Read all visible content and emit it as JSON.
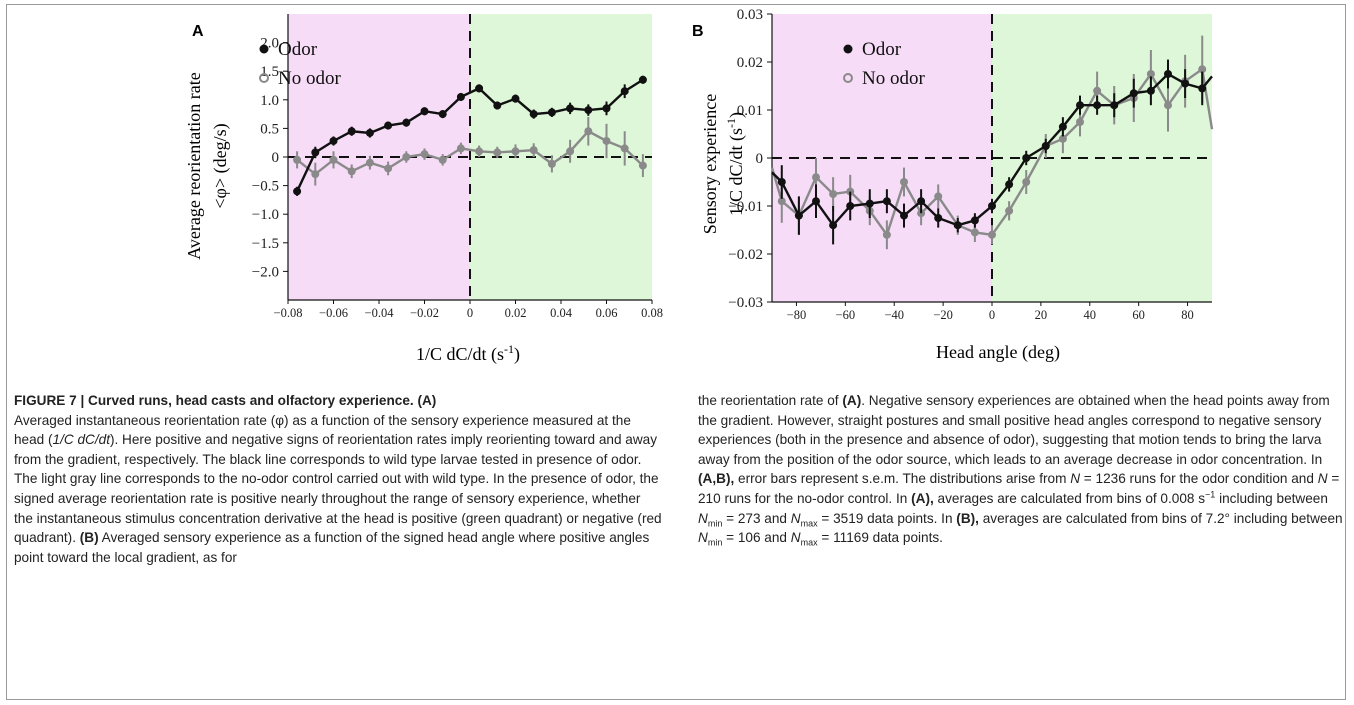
{
  "figure": {
    "panels": {
      "A": {
        "label": "A",
        "ylabel_line1": "Average reorientation rate",
        "ylabel_line2": "<φ>  (deg/s)",
        "xlabel": "1/C dC/dt (s",
        "xlabel_sup": "-1",
        "xlabel_tail": ")",
        "legend": [
          "Odor",
          "No odor"
        ],
        "colors": {
          "odor": "#111111",
          "no_odor": "#8a8a8a",
          "neg_region": "#f7dcf8",
          "pos_region": "#def7d8"
        }
      },
      "B": {
        "label": "B",
        "ylabel_line1": "Sensory experience",
        "ylabel_line2": "1/C dC/dt (s",
        "ylabel_sup": "-1",
        "ylabel_tail": ")",
        "xlabel": "Head angle (deg)",
        "legend": [
          "Odor",
          "No odor"
        ],
        "colors": {
          "odor": "#111111",
          "no_odor": "#8a8a8a",
          "neg_region": "#f7dcf8",
          "pos_region": "#def7d8"
        }
      }
    }
  },
  "chart_data": [
    {
      "type": "line",
      "panel": "A",
      "xlabel": "1/C dC/dt (s-1)",
      "ylabel": "Average reorientation rate <φ> (deg/s)",
      "xlim": [
        -0.08,
        0.08
      ],
      "ylim": [
        -2.5,
        2.5
      ],
      "xticks": [
        "−0.08",
        "−0.06",
        "−0.04",
        "−0.02",
        "0",
        "0.02",
        "0.04",
        "0.06",
        "0.08"
      ],
      "yticks": [
        "2.0",
        "1.5",
        "1.0",
        "0.5",
        "0",
        "−0.5",
        "−1.0",
        "−1.5",
        "−2.0"
      ],
      "legend_position": "top-left",
      "x": [
        -0.076,
        -0.068,
        -0.06,
        -0.052,
        -0.044,
        -0.036,
        -0.028,
        -0.02,
        -0.012,
        -0.004,
        0.004,
        0.012,
        0.02,
        0.028,
        0.036,
        0.044,
        0.052,
        0.06,
        0.068,
        0.076
      ],
      "series": [
        {
          "name": "Odor",
          "color": "#111111",
          "values": [
            -0.6,
            0.08,
            0.28,
            0.45,
            0.42,
            0.55,
            0.6,
            0.8,
            0.75,
            1.05,
            1.2,
            0.9,
            1.02,
            0.75,
            0.78,
            0.85,
            0.82,
            0.85,
            1.15,
            1.35
          ],
          "errors": [
            0.08,
            0.1,
            0.08,
            0.08,
            0.08,
            0.07,
            0.07,
            0.07,
            0.07,
            0.07,
            0.07,
            0.07,
            0.07,
            0.08,
            0.08,
            0.1,
            0.1,
            0.12,
            0.12,
            0.07
          ]
        },
        {
          "name": "No odor",
          "color": "#8a8a8a",
          "values": [
            -0.05,
            -0.3,
            -0.05,
            -0.25,
            -0.1,
            -0.2,
            0.0,
            0.05,
            -0.05,
            0.15,
            0.1,
            0.08,
            0.1,
            0.12,
            -0.12,
            0.1,
            0.45,
            0.28,
            0.15,
            -0.15
          ],
          "errors": [
            0.15,
            0.2,
            0.15,
            0.12,
            0.12,
            0.12,
            0.1,
            0.1,
            0.1,
            0.1,
            0.1,
            0.1,
            0.12,
            0.12,
            0.15,
            0.2,
            0.25,
            0.3,
            0.3,
            0.2
          ]
        }
      ]
    },
    {
      "type": "line",
      "panel": "B",
      "xlabel": "Head angle (deg)",
      "ylabel": "Sensory experience 1/C dC/dt (s-1)",
      "xlim": [
        -90,
        90
      ],
      "ylim": [
        -0.03,
        0.03
      ],
      "xticks": [
        "−80",
        "−60",
        "−40",
        "−20",
        "0",
        "20",
        "40",
        "60",
        "80"
      ],
      "yticks": [
        "0.03",
        "0.02",
        "0.01",
        "0",
        "−0.01",
        "−0.02",
        "−0.03"
      ],
      "legend_position": "top-left",
      "series": [
        {
          "name": "Odor",
          "color": "#111111",
          "x": [
            -90,
            -86,
            -79,
            -72,
            -65,
            -58,
            -50,
            -43,
            -36,
            -29,
            -22,
            -14,
            -7,
            0,
            7,
            14,
            22,
            29,
            36,
            43,
            50,
            58,
            65,
            72,
            79,
            86,
            90
          ],
          "values": [
            -0.003,
            -0.005,
            -0.012,
            -0.009,
            -0.014,
            -0.01,
            -0.0095,
            -0.009,
            -0.012,
            -0.009,
            -0.0125,
            -0.014,
            -0.013,
            -0.01,
            -0.0055,
            0.0,
            0.0025,
            0.0065,
            0.011,
            0.011,
            0.011,
            0.0135,
            0.014,
            0.0175,
            0.0155,
            0.0145,
            0.017
          ],
          "errors": [
            0,
            0.0035,
            0.004,
            0.0035,
            0.004,
            0.003,
            0.003,
            0.0025,
            0.0025,
            0.0025,
            0.002,
            0.0015,
            0.0015,
            0.0015,
            0.0015,
            0.0015,
            0.0015,
            0.002,
            0.002,
            0.002,
            0.0025,
            0.003,
            0.003,
            0.003,
            0.003,
            0.0035,
            0
          ]
        },
        {
          "name": "No odor",
          "color": "#8a8a8a",
          "x": [
            -90,
            -86,
            -79,
            -72,
            -65,
            -58,
            -50,
            -43,
            -36,
            -29,
            -22,
            -14,
            -7,
            0,
            7,
            14,
            22,
            29,
            36,
            43,
            50,
            58,
            65,
            72,
            79,
            86,
            90
          ],
          "values": [
            -0.002,
            -0.009,
            -0.012,
            -0.004,
            -0.0075,
            -0.007,
            -0.011,
            -0.016,
            -0.005,
            -0.0115,
            -0.008,
            -0.014,
            -0.0155,
            -0.016,
            -0.011,
            -0.005,
            0.0025,
            0.004,
            0.0075,
            0.014,
            0.011,
            0.0125,
            0.0175,
            0.011,
            0.016,
            0.0185,
            0.006
          ],
          "errors": [
            0,
            0.0045,
            0.004,
            0.004,
            0.0035,
            0.0035,
            0.003,
            0.003,
            0.003,
            0.0025,
            0.0025,
            0.002,
            0.002,
            0.002,
            0.002,
            0.0025,
            0.0025,
            0.003,
            0.003,
            0.004,
            0.004,
            0.005,
            0.005,
            0.0055,
            0.0055,
            0.007,
            0
          ]
        }
      ]
    }
  ],
  "caption": {
    "left": {
      "title": "FIGURE 7 | Curved runs, head casts and olfactory experience. (A)",
      "t1": "Averaged instantaneous reorientation rate (φ) as a function of the sensory experience measured at the head (",
      "t1_i": "1/C dC/dt",
      "t2": "). Here positive and negative signs of reorientation rates imply reorienting toward and away from the gradient, respectively. The black line corresponds to wild type larvae tested in presence of odor. The light gray line corresponds to the no-odor control carried out with wild type. In the presence of odor, the signed average reorientation rate is positive nearly throughout the range of sensory experience, whether the instantaneous stimulus concentration derivative at the head is positive (green quadrant) or negative (red quadrant). ",
      "t3_b": "(B)",
      "t4": " Averaged sensory experience as a function of the signed head angle where positive angles point toward the local gradient, as for"
    },
    "right": {
      "r1": "the reorientation rate of ",
      "r1_b": "(A)",
      "r2": ". Negative sensory experiences are obtained when the head points away from the gradient. However, straight postures and small positive head angles correspond to negative sensory experiences (both in the presence and absence of odor), suggesting that motion tends to bring the larva away from the position of the odor source, which leads to an average decrease in odor concentration. In ",
      "r3_b": "(A,B),",
      "r4": " error bars represent s.e.m. The distributions arise from ",
      "r4_N": "N",
      "r4_eq": " = 1236 runs for the odor condition and ",
      "r5_N": "N",
      "r5_eq": " = 210 runs for the no-odor control. In ",
      "r6_b": "(A),",
      "r7": " averages are calculated from bins of 0.008 s",
      "r7_sup": "−1",
      "r8": " including between ",
      "r8_N": "N",
      "r8_sub": "min",
      "r8_eq": " = 273 and ",
      "r9_N": "N",
      "r9_sub": "max",
      "r9_eq": " = 3519 data points. In ",
      "r10_b": "(B),",
      "r11": " averages are calculated from bins of 7.2° including between ",
      "r11_N": "N",
      "r11_sub": "min",
      "r11_eq": " = 106 and ",
      "r12_N": "N",
      "r12_sub": "max",
      "r12_eq": " = 11169 data points."
    }
  }
}
